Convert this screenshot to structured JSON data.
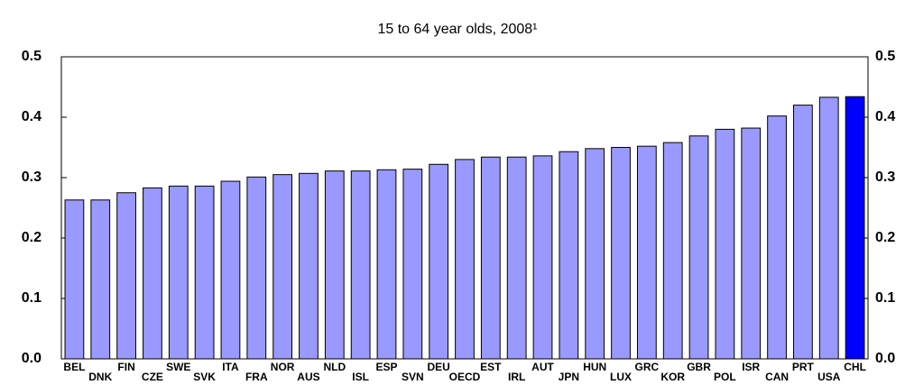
{
  "chart_data": {
    "type": "bar",
    "title": "15 to 64 year olds, 2008¹",
    "categories": [
      "BEL",
      "DNK",
      "FIN",
      "CZE",
      "SWE",
      "SVK",
      "ITA",
      "FRA",
      "NOR",
      "AUS",
      "NLD",
      "ISL",
      "ESP",
      "SVN",
      "DEU",
      "OECD",
      "EST",
      "IRL",
      "AUT",
      "JPN",
      "HUN",
      "LUX",
      "GRC",
      "KOR",
      "GBR",
      "POL",
      "ISR",
      "CAN",
      "PRT",
      "USA",
      "CHL"
    ],
    "values": [
      0.263,
      0.263,
      0.275,
      0.283,
      0.286,
      0.286,
      0.294,
      0.301,
      0.305,
      0.307,
      0.311,
      0.311,
      0.313,
      0.314,
      0.322,
      0.33,
      0.334,
      0.334,
      0.336,
      0.343,
      0.348,
      0.35,
      0.352,
      0.358,
      0.369,
      0.38,
      0.382,
      0.402,
      0.42,
      0.433,
      0.434
    ],
    "colors": [
      "#9999ff",
      "#9999ff",
      "#9999ff",
      "#9999ff",
      "#9999ff",
      "#9999ff",
      "#9999ff",
      "#9999ff",
      "#9999ff",
      "#9999ff",
      "#9999ff",
      "#9999ff",
      "#9999ff",
      "#9999ff",
      "#9999ff",
      "#9999ff",
      "#9999ff",
      "#9999ff",
      "#9999ff",
      "#9999ff",
      "#9999ff",
      "#9999ff",
      "#9999ff",
      "#9999ff",
      "#9999ff",
      "#9999ff",
      "#9999ff",
      "#9999ff",
      "#9999ff",
      "#9999ff",
      "#0000ff"
    ],
    "ylim": [
      0,
      0.5
    ],
    "yticks": [
      {
        "value": 0,
        "label": "0.0"
      },
      0.1,
      0.2,
      0.3,
      0.4,
      0.5
    ],
    "grid": false
  }
}
